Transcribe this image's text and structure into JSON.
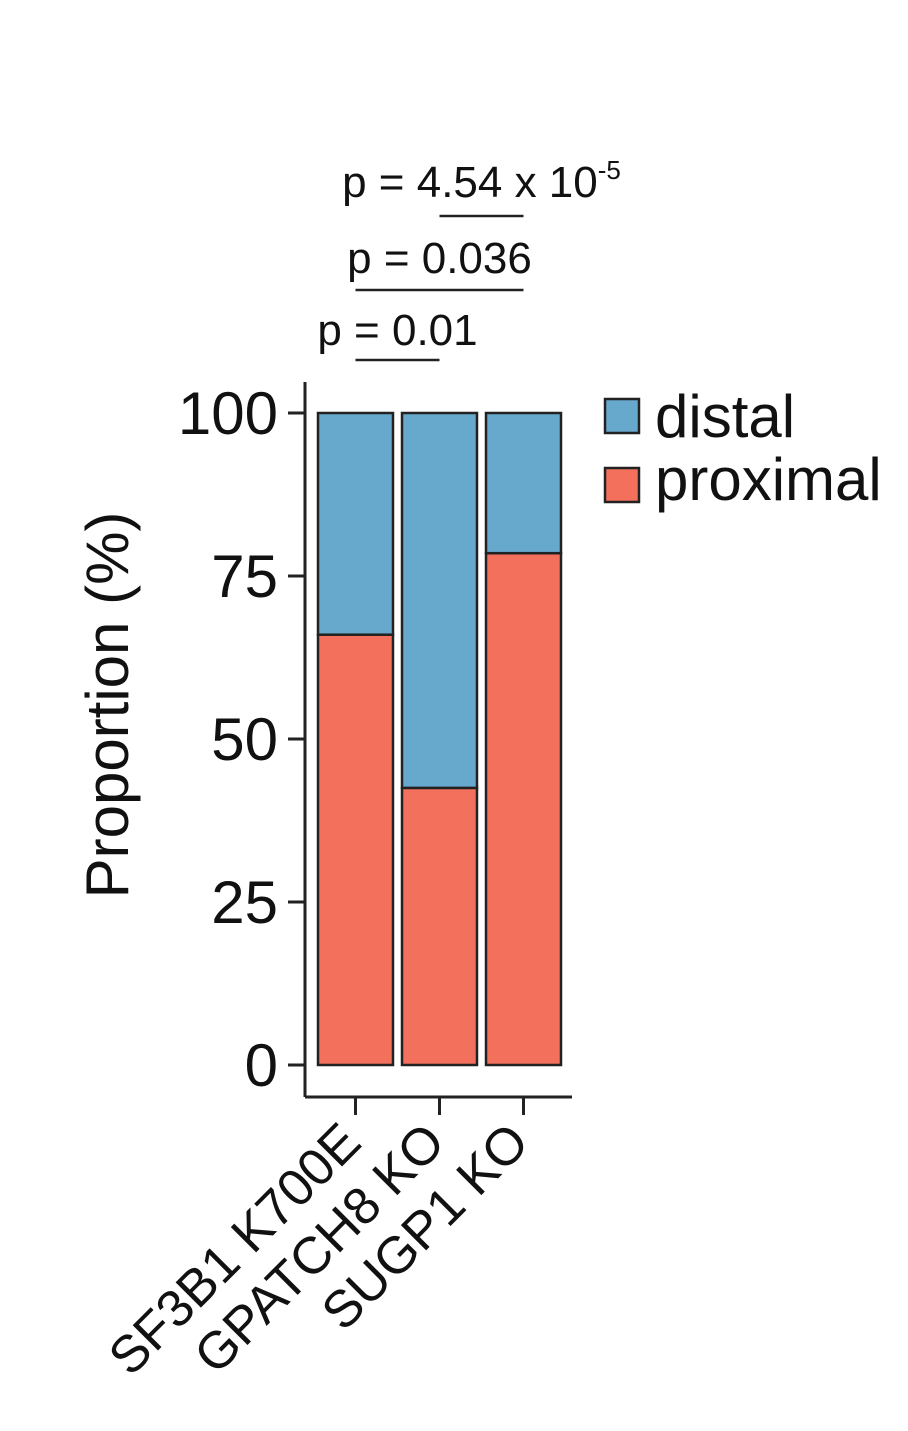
{
  "chart_data": {
    "type": "bar",
    "stacked": true,
    "title": "",
    "xlabel": "",
    "ylabel": "Proportion (%)",
    "ylim": [
      0,
      100
    ],
    "yticks": [
      0,
      25,
      50,
      75,
      100
    ],
    "categories": [
      "SF3B1 K700E",
      "GPATCH8 KO",
      "SUGP1 KO"
    ],
    "series": [
      {
        "name": "proximal",
        "color": "#F2705C",
        "values": [
          66,
          42.5,
          78.5
        ]
      },
      {
        "name": "distal",
        "color": "#67A8CD",
        "values": [
          34,
          57.5,
          21.5
        ]
      }
    ],
    "legend": {
      "position": "top-right",
      "entries": [
        "distal",
        "proximal"
      ]
    },
    "annotations": [
      {
        "from": 0,
        "to": 1,
        "text": "p = 0.01"
      },
      {
        "from": 0,
        "to": 2,
        "text": "p = 0.036"
      },
      {
        "from": 1,
        "to": 2,
        "text_base": "p = 4.54 x 10",
        "exponent": "-5"
      }
    ]
  }
}
